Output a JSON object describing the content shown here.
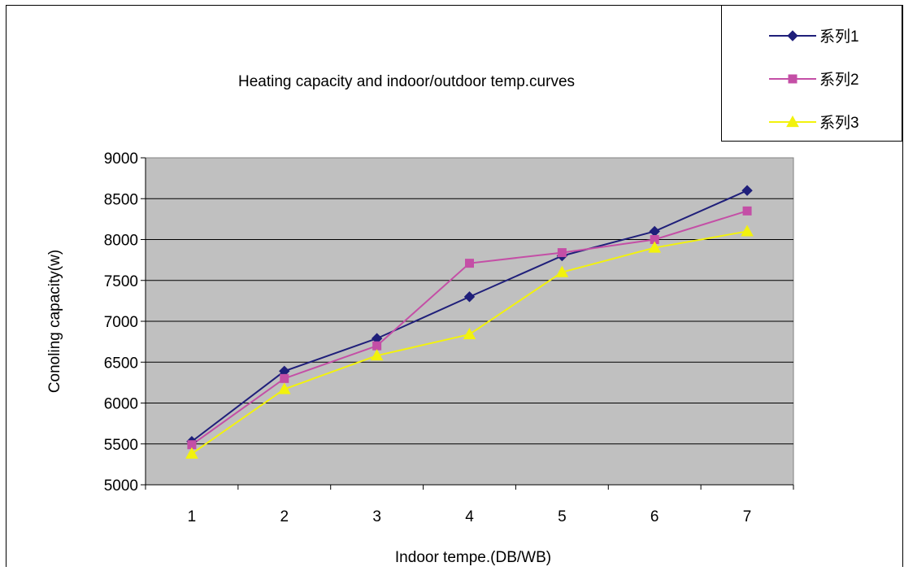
{
  "chart_data": {
    "type": "line",
    "title": "Heating capacity and indoor/outdoor temp.curves",
    "xlabel": "Indoor tempe.(DB/WB)",
    "ylabel": "Conoling capacity(w)",
    "categories": [
      "1",
      "2",
      "3",
      "4",
      "5",
      "6",
      "7"
    ],
    "ylim": [
      5000,
      9000
    ],
    "yticks": [
      "5000",
      "5500",
      "6000",
      "6500",
      "7000",
      "7500",
      "8000",
      "8500",
      "9000"
    ],
    "grid": true,
    "legend_position": "top-right",
    "plot_background": "#c0c0c0",
    "series": [
      {
        "name": "系列1",
        "color": "#1f1f7a",
        "marker": "diamond",
        "values": [
          5530,
          6390,
          6790,
          7300,
          7800,
          8100,
          8600
        ]
      },
      {
        "name": "系列2",
        "color": "#c44fa6",
        "marker": "square",
        "values": [
          5490,
          6300,
          6700,
          7710,
          7840,
          8000,
          8350
        ]
      },
      {
        "name": "系列3",
        "color": "#f2f20d",
        "marker": "triangle",
        "values": [
          5380,
          6170,
          6580,
          6840,
          7600,
          7900,
          8100
        ]
      }
    ]
  }
}
